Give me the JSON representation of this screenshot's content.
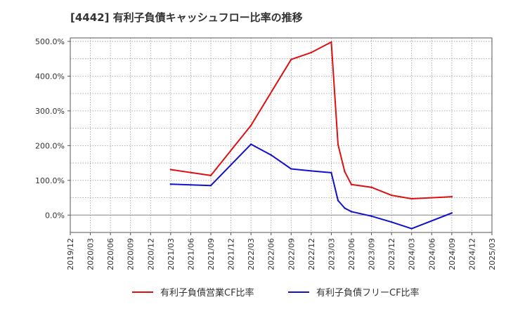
{
  "chart_data": {
    "type": "line",
    "title": "[4442]  有利子負債キャッシュフロー比率の推移",
    "xlabel": "",
    "ylabel": "",
    "ylim": [
      -50,
      510
    ],
    "y_ticks": [
      0,
      100,
      200,
      300,
      400,
      500
    ],
    "y_tick_labels": [
      "0.0%",
      "100.0%",
      "200.0%",
      "300.0%",
      "400.0%",
      "500.0%"
    ],
    "x_range": [
      "2019/12",
      "2025/03"
    ],
    "x_tick_labels": [
      "2019/12",
      "2020/03",
      "2020/06",
      "2020/09",
      "2020/12",
      "2021/03",
      "2021/06",
      "2021/09",
      "2021/12",
      "2022/03",
      "2022/06",
      "2022/09",
      "2022/12",
      "2023/03",
      "2023/06",
      "2023/09",
      "2023/12",
      "2024/03",
      "2024/06",
      "2024/09",
      "2024/12",
      "2025/03"
    ],
    "grid": true,
    "legend_position": "bottom",
    "series": [
      {
        "name": "有利子負債営業CF比率",
        "color": "#dd1111",
        "points": [
          {
            "x": "2021/03",
            "y": 131
          },
          {
            "x": "2021/09",
            "y": 114
          },
          {
            "x": "2022/03",
            "y": 258
          },
          {
            "x": "2022/09",
            "y": 448
          },
          {
            "x": "2022/12",
            "y": 468
          },
          {
            "x": "2023/03",
            "y": 498
          },
          {
            "x": "2023/04",
            "y": 203
          },
          {
            "x": "2023/05",
            "y": 125
          },
          {
            "x": "2023/06",
            "y": 88
          },
          {
            "x": "2023/09",
            "y": 80
          },
          {
            "x": "2023/12",
            "y": 57
          },
          {
            "x": "2024/03",
            "y": 47
          },
          {
            "x": "2024/09",
            "y": 53
          }
        ]
      },
      {
        "name": "有利子負債フリーCF比率",
        "color": "#1111cc",
        "points": [
          {
            "x": "2021/03",
            "y": 89
          },
          {
            "x": "2021/09",
            "y": 85
          },
          {
            "x": "2022/03",
            "y": 204
          },
          {
            "x": "2022/06",
            "y": 173
          },
          {
            "x": "2022/09",
            "y": 133
          },
          {
            "x": "2022/12",
            "y": 127
          },
          {
            "x": "2023/03",
            "y": 122
          },
          {
            "x": "2023/04",
            "y": 42
          },
          {
            "x": "2023/05",
            "y": 20
          },
          {
            "x": "2023/06",
            "y": 10
          },
          {
            "x": "2023/09",
            "y": -3
          },
          {
            "x": "2023/12",
            "y": -20
          },
          {
            "x": "2024/03",
            "y": -39
          },
          {
            "x": "2024/09",
            "y": 6
          }
        ]
      }
    ]
  }
}
